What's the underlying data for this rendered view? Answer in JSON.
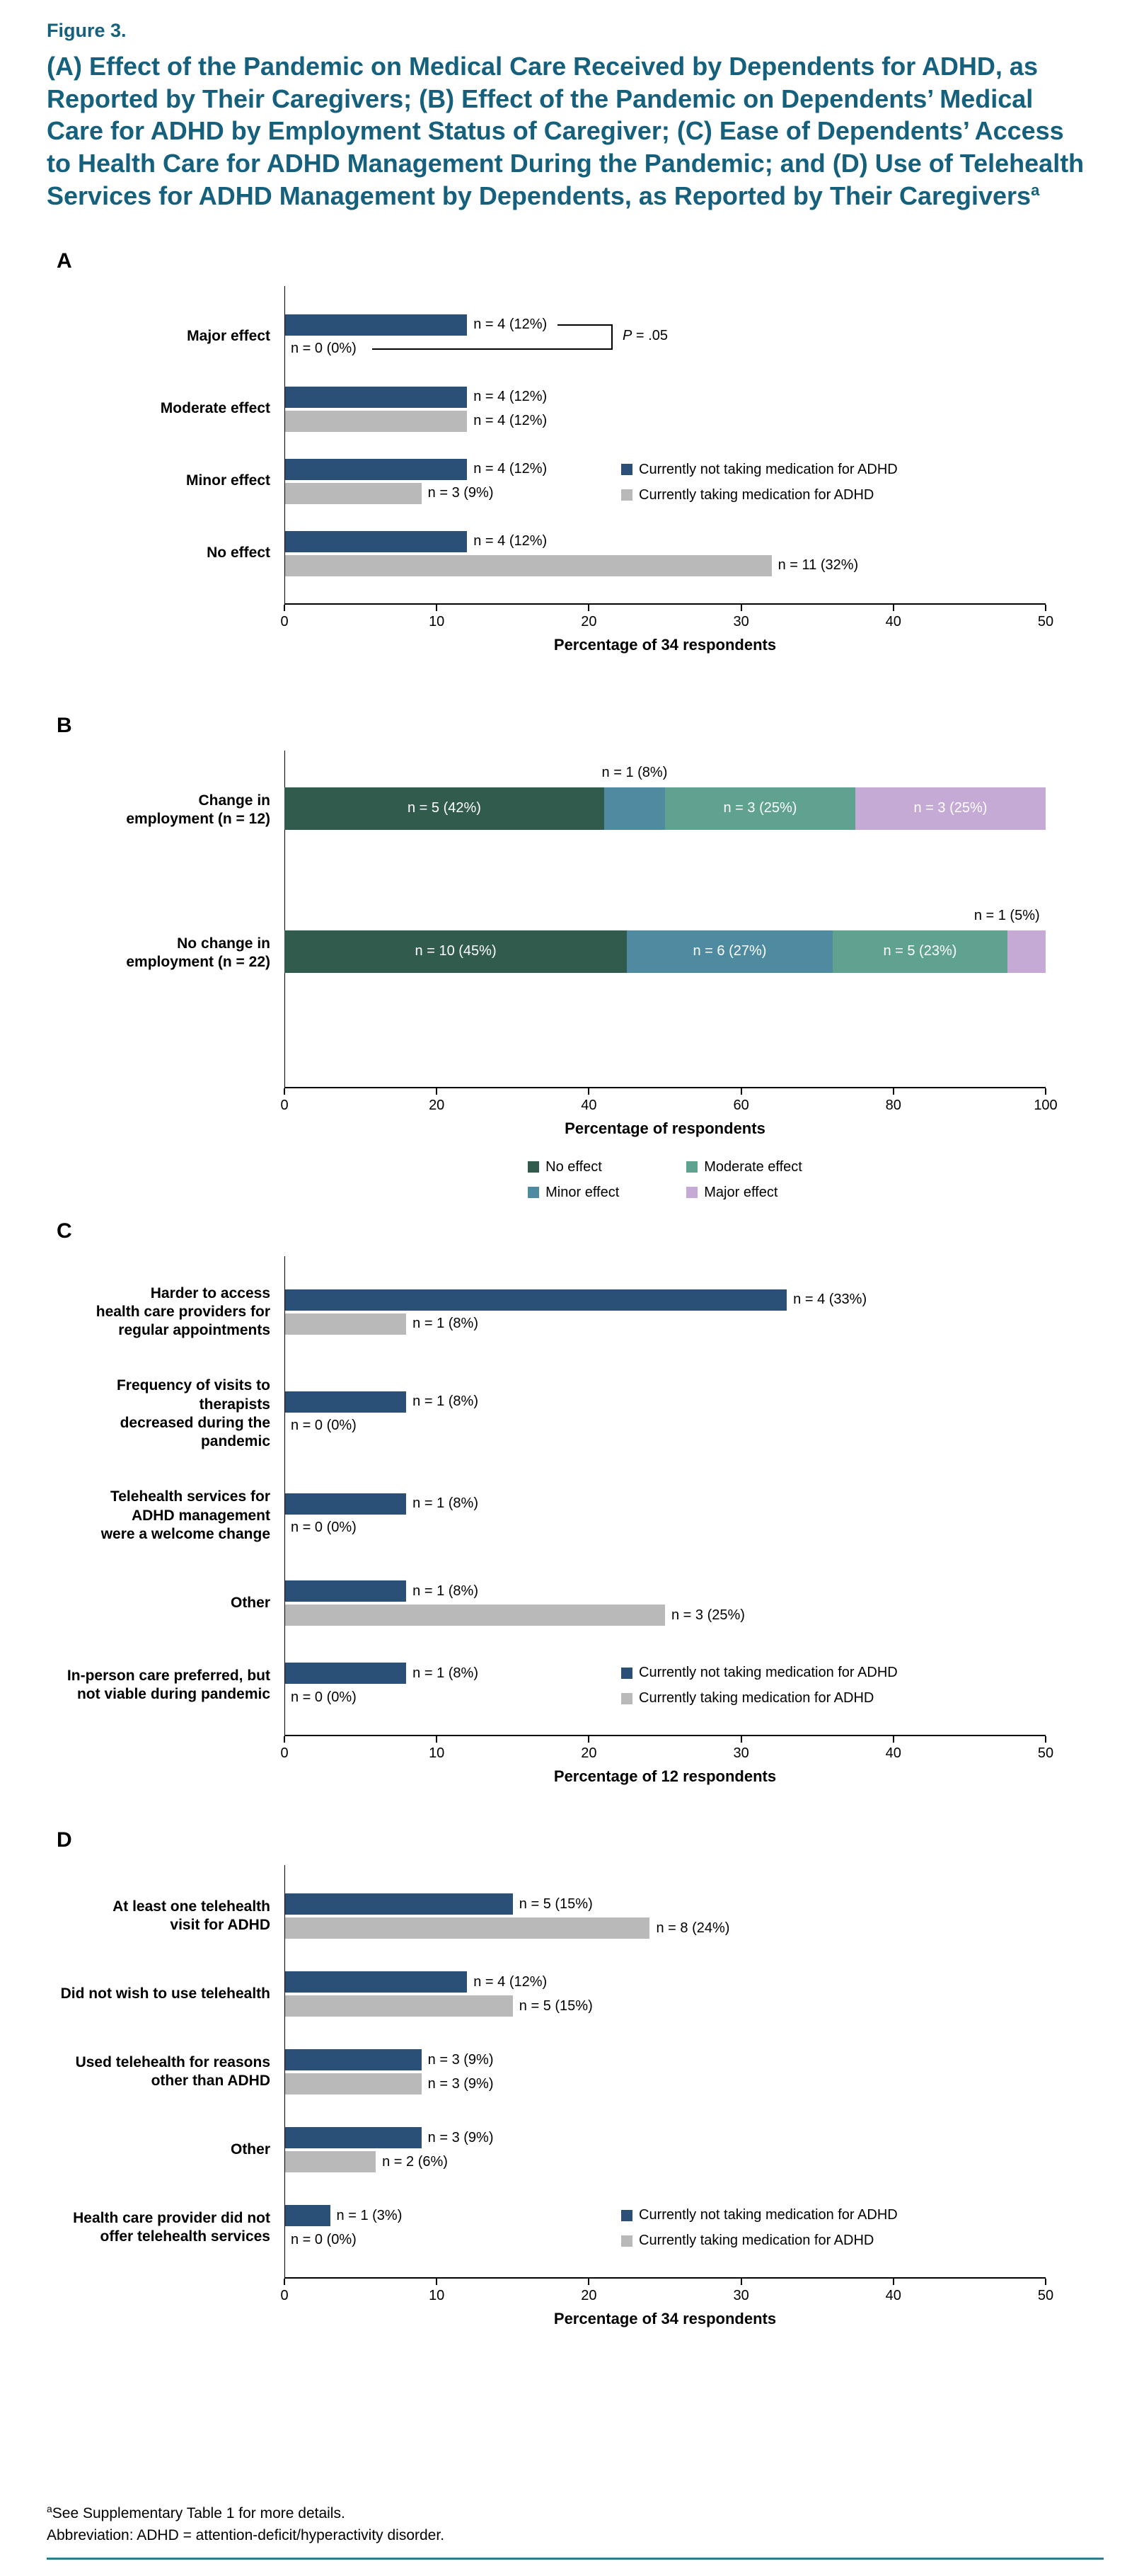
{
  "figure": {
    "label": "Figure 3.",
    "title": "(A) Effect of the Pandemic on Medical Care Received by Dependents for ADHD, as Reported by Their Caregivers; (B) Effect of the Pandemic on Dependents’ Medical Care for ADHD by Employment Status of Caregiver; (C) Ease of Dependents’ Access to Health Care for ADHD Management During the Pandemic; and (D) Use of Telehealth Services for ADHD Management by Dependents, as Reported by Their Caregivers",
    "title_superscript": "a"
  },
  "colors": {
    "navy": "#2a5078",
    "gray": "#b9b9b9",
    "heading": "#15607d",
    "no_effect": "#315c4d",
    "minor_effect": "#4e8ba0",
    "moderate_effect": "#5fa28f",
    "major_effect": "#c6aad6",
    "rule": "#2b7f90"
  },
  "chart_data": [
    {
      "panel": "A",
      "type": "bar",
      "orientation": "horizontal",
      "xlabel": "Percentage of 34 respondents",
      "xlim": [
        0,
        50
      ],
      "xticks": [
        0,
        10,
        20,
        30,
        40,
        50
      ],
      "categories": [
        "Major effect",
        "Moderate effect",
        "Minor effect",
        "No effect"
      ],
      "series": [
        {
          "name": "Currently not taking medication for ADHD",
          "color_key": "navy",
          "values": [
            12,
            12,
            12,
            12
          ],
          "labels": [
            "n = 4 (12%)",
            "n = 4 (12%)",
            "n = 4 (12%)",
            "n = 4 (12%)"
          ]
        },
        {
          "name": "Currently taking medication for ADHD",
          "color_key": "gray",
          "values": [
            0,
            12,
            9,
            32
          ],
          "labels": [
            "n = 0 (0%)",
            "n = 4 (12%)",
            "n = 3 (9%)",
            "n = 11 (32%)"
          ]
        }
      ],
      "legend": [
        {
          "label": "Currently not taking medication for ADHD",
          "color_key": "navy"
        },
        {
          "label": "Currently taking medication for ADHD",
          "color_key": "gray"
        }
      ],
      "annotation": {
        "p_italic": "P",
        "p_rest": " = .05",
        "applies_to": "Major effect"
      }
    },
    {
      "panel": "B",
      "type": "stacked_bar",
      "orientation": "horizontal",
      "xlabel": "Percentage of respondents",
      "xlim": [
        0,
        100
      ],
      "xticks": [
        0,
        20,
        40,
        60,
        80,
        100
      ],
      "categories": [
        "Change in\nemployment (n = 12)",
        "No change in\nemployment (n = 22)"
      ],
      "series": [
        {
          "name": "No effect",
          "color_key": "no_effect",
          "values": [
            42,
            45
          ],
          "labels": [
            "n = 5 (42%)",
            "n = 10 (45%)"
          ],
          "label_outside": [
            false,
            false
          ]
        },
        {
          "name": "Minor effect",
          "color_key": "minor_effect",
          "values": [
            8,
            27
          ],
          "labels": [
            "n = 1 (8%)",
            "n = 6 (27%)"
          ],
          "label_outside": [
            true,
            false
          ]
        },
        {
          "name": "Moderate effect",
          "color_key": "moderate_effect",
          "values": [
            25,
            23
          ],
          "labels": [
            "n = 3 (25%)",
            "n = 5 (23%)"
          ],
          "label_outside": [
            false,
            false
          ]
        },
        {
          "name": "Major effect",
          "color_key": "major_effect",
          "values": [
            25,
            5
          ],
          "labels": [
            "n = 3 (25%)",
            "n = 1 (5%)"
          ],
          "label_outside": [
            false,
            true
          ]
        }
      ],
      "legend": [
        {
          "label": "No effect",
          "color_key": "no_effect"
        },
        {
          "label": "Moderate effect",
          "color_key": "moderate_effect"
        },
        {
          "label": "Minor effect",
          "color_key": "minor_effect"
        },
        {
          "label": "Major effect",
          "color_key": "major_effect"
        }
      ]
    },
    {
      "panel": "C",
      "type": "bar",
      "orientation": "horizontal",
      "xlabel": "Percentage of 12 respondents",
      "xlim": [
        0,
        50
      ],
      "xticks": [
        0,
        10,
        20,
        30,
        40,
        50
      ],
      "categories": [
        "Harder to access\nhealth care providers for\nregular appointments",
        "Frequency of visits to therapists\ndecreased during the pandemic",
        "Telehealth services for\nADHD management\nwere a welcome change",
        "Other",
        "In-person care preferred, but\nnot viable during pandemic"
      ],
      "series": [
        {
          "name": "Currently not taking medication for ADHD",
          "color_key": "navy",
          "values": [
            33,
            8,
            8,
            8,
            8
          ],
          "labels": [
            "n = 4 (33%)",
            "n = 1 (8%)",
            "n = 1 (8%)",
            "n = 1 (8%)",
            "n = 1 (8%)"
          ]
        },
        {
          "name": "Currently taking medication for ADHD",
          "color_key": "gray",
          "values": [
            8,
            0,
            0,
            25,
            0
          ],
          "labels": [
            "n = 1 (8%)",
            "n = 0 (0%)",
            "n = 0 (0%)",
            "n = 3 (25%)",
            "n = 0 (0%)"
          ]
        }
      ],
      "legend": [
        {
          "label": "Currently not taking medication for ADHD",
          "color_key": "navy"
        },
        {
          "label": "Currently taking medication for ADHD",
          "color_key": "gray"
        }
      ]
    },
    {
      "panel": "D",
      "type": "bar",
      "orientation": "horizontal",
      "xlabel": "Percentage of 34 respondents",
      "xlim": [
        0,
        50
      ],
      "xticks": [
        0,
        10,
        20,
        30,
        40,
        50
      ],
      "categories": [
        "At least one telehealth\nvisit for ADHD",
        "Did not wish to use telehealth",
        "Used telehealth for reasons\nother than ADHD",
        "Other",
        "Health care provider did not\noffer telehealth services"
      ],
      "series": [
        {
          "name": "Currently not taking medication for ADHD",
          "color_key": "navy",
          "values": [
            15,
            12,
            9,
            9,
            3
          ],
          "labels": [
            "n = 5 (15%)",
            "n = 4 (12%)",
            "n = 3 (9%)",
            "n = 3 (9%)",
            "n = 1 (3%)"
          ]
        },
        {
          "name": "Currently taking medication for ADHD",
          "color_key": "gray",
          "values": [
            24,
            15,
            9,
            6,
            0
          ],
          "labels": [
            "n = 8 (24%)",
            "n = 5 (15%)",
            "n = 3 (9%)",
            "n = 2 (6%)",
            "n = 0 (0%)"
          ]
        }
      ],
      "legend": [
        {
          "label": "Currently not taking medication for ADHD",
          "color_key": "navy"
        },
        {
          "label": "Currently taking medication for ADHD",
          "color_key": "gray"
        }
      ]
    }
  ],
  "footnotes": {
    "line1_sup": "a",
    "line1": "See Supplementary Table 1 for more details.",
    "line2": "Abbreviation: ADHD = attention-deficit/hyperactivity disorder."
  }
}
